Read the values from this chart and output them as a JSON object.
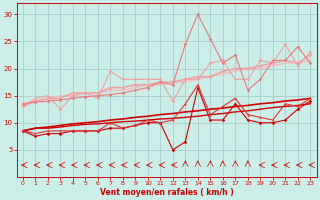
{
  "x": [
    0,
    1,
    2,
    3,
    4,
    5,
    6,
    7,
    8,
    9,
    10,
    11,
    12,
    13,
    14,
    15,
    16,
    17,
    18,
    19,
    20,
    21,
    22,
    23
  ],
  "line_dark1": [
    8.5,
    7.5,
    8.0,
    8.0,
    8.5,
    8.5,
    8.5,
    9.0,
    9.0,
    9.5,
    10.0,
    10.0,
    5.0,
    6.5,
    16.5,
    10.5,
    10.5,
    13.5,
    10.5,
    10.0,
    10.0,
    10.5,
    12.5,
    14.0
  ],
  "line_dark2": [
    8.5,
    8.0,
    8.5,
    8.5,
    8.5,
    8.5,
    8.5,
    10.0,
    9.0,
    9.5,
    10.5,
    10.0,
    10.5,
    13.5,
    17.0,
    11.5,
    13.0,
    14.5,
    11.5,
    11.0,
    10.5,
    13.5,
    13.0,
    14.5
  ],
  "line_trend1": [
    8.5,
    9.0,
    9.0,
    9.2,
    9.5,
    9.7,
    9.8,
    10.0,
    10.2,
    10.3,
    10.5,
    10.7,
    10.8,
    11.0,
    11.2,
    11.5,
    11.7,
    12.0,
    12.2,
    12.5,
    12.8,
    13.0,
    13.2,
    13.5
  ],
  "line_trend2": [
    8.5,
    9.0,
    9.2,
    9.5,
    9.8,
    10.0,
    10.2,
    10.5,
    10.7,
    11.0,
    11.2,
    11.5,
    11.7,
    12.0,
    12.2,
    12.5,
    12.7,
    13.0,
    13.2,
    13.5,
    13.7,
    14.0,
    14.2,
    14.5
  ],
  "line_pink_jagged": [
    13.0,
    14.5,
    15.0,
    12.5,
    15.0,
    15.5,
    14.5,
    19.5,
    18.0,
    18.0,
    18.0,
    18.0,
    14.0,
    18.0,
    18.0,
    21.0,
    21.5,
    18.0,
    18.0,
    21.5,
    21.0,
    24.5,
    20.5,
    23.0
  ],
  "line_pink_trend1": [
    13.0,
    14.0,
    14.5,
    14.5,
    15.5,
    15.5,
    15.5,
    16.5,
    16.5,
    17.0,
    17.0,
    17.5,
    17.5,
    18.0,
    18.5,
    18.5,
    19.5,
    20.0,
    20.0,
    20.5,
    21.0,
    21.5,
    21.0,
    22.5
  ],
  "line_pink_trend2": [
    13.5,
    14.0,
    14.5,
    15.0,
    15.0,
    15.5,
    15.5,
    16.0,
    16.0,
    16.5,
    17.0,
    17.0,
    17.5,
    17.5,
    18.0,
    18.5,
    19.0,
    19.5,
    20.0,
    20.0,
    20.5,
    21.0,
    21.0,
    21.5
  ],
  "line_spike": [
    13.5,
    13.8,
    14.0,
    14.2,
    14.5,
    14.8,
    15.0,
    15.2,
    15.5,
    16.0,
    16.5,
    17.5,
    17.0,
    24.5,
    30.0,
    25.5,
    21.0,
    22.5,
    16.0,
    18.0,
    21.5,
    21.5,
    24.0,
    21.0
  ],
  "c_darkred": "#cc0000",
  "c_medred": "#dd3333",
  "c_pink": "#f0a0a0",
  "c_lightpink": "#f5bbbb",
  "c_midpink": "#e87878",
  "bg": "#cceee8",
  "grid": "#aacccc",
  "axis": "#cc0000",
  "xlabel": "Vent moyen/en rafales ( km/h )",
  "ylim": [
    0,
    32
  ],
  "xlim": [
    -0.5,
    23.5
  ],
  "yticks": [
    5,
    10,
    15,
    20,
    25,
    30
  ],
  "xticks": [
    0,
    1,
    2,
    3,
    4,
    5,
    6,
    7,
    8,
    9,
    10,
    11,
    12,
    13,
    14,
    15,
    16,
    17,
    18,
    19,
    20,
    21,
    22,
    23
  ],
  "arrow_up_indices": [
    13,
    14,
    15,
    16,
    17,
    18
  ]
}
